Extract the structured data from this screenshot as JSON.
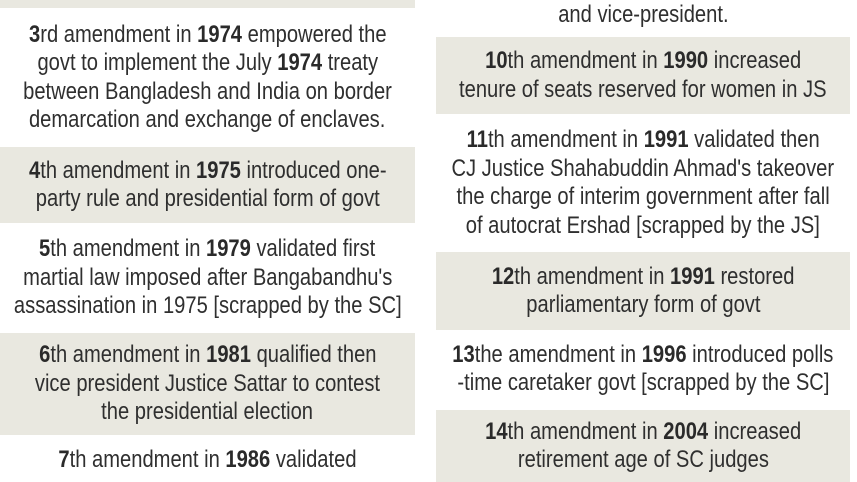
{
  "colors": {
    "shade": "#e9e8e0",
    "text": "#2f2f2f"
  },
  "left_column": [
    {
      "id": "top",
      "shaded": true,
      "lines": []
    },
    {
      "id": "3rd",
      "shaded": false,
      "lines": [
        [
          {
            "t": "3",
            "b": true
          },
          {
            "t": "rd amendment in "
          },
          {
            "t": "1974",
            "b": true
          },
          {
            "t": " empowered the"
          }
        ],
        [
          {
            "t": "govt to implement the July "
          },
          {
            "t": "1974",
            "b": true
          },
          {
            "t": " treaty"
          }
        ],
        [
          {
            "t": "between Bangladesh and India on border"
          }
        ],
        [
          {
            "t": "demarcation and exchange of enclaves."
          }
        ]
      ]
    },
    {
      "id": "4th",
      "shaded": true,
      "lines": [
        [
          {
            "t": "4",
            "b": true
          },
          {
            "t": "th amendment in "
          },
          {
            "t": "1975",
            "b": true
          },
          {
            "t": " introduced one-"
          }
        ],
        [
          {
            "t": "party rule and presidential form of govt"
          }
        ]
      ]
    },
    {
      "id": "5th",
      "shaded": false,
      "lines": [
        [
          {
            "t": "5",
            "b": true
          },
          {
            "t": "th amendment in "
          },
          {
            "t": "1979",
            "b": true
          },
          {
            "t": " validated first"
          }
        ],
        [
          {
            "t": "martial law imposed after Bangabandhu's"
          }
        ],
        [
          {
            "t": "assassination in 1975 [scrapped by the SC]"
          }
        ]
      ]
    },
    {
      "id": "6th",
      "shaded": true,
      "lines": [
        [
          {
            "t": "6",
            "b": true
          },
          {
            "t": "th amendment in "
          },
          {
            "t": "1981",
            "b": true
          },
          {
            "t": " qualified then"
          }
        ],
        [
          {
            "t": "vice president Justice Sattar to contest"
          }
        ],
        [
          {
            "t": "the presidential election"
          }
        ]
      ]
    },
    {
      "id": "7th",
      "shaded": false,
      "lines": [
        [
          {
            "t": "7",
            "b": true
          },
          {
            "t": "th amendment in "
          },
          {
            "t": "1986",
            "b": true
          },
          {
            "t": " validated"
          }
        ]
      ]
    }
  ],
  "right_column": [
    {
      "id": "9th-tail",
      "shaded": false,
      "lines": [
        [
          {
            "t": "and vice-president."
          }
        ]
      ]
    },
    {
      "id": "10th",
      "shaded": true,
      "lines": [
        [
          {
            "t": "10",
            "b": true
          },
          {
            "t": "th amendment in "
          },
          {
            "t": "1990",
            "b": true
          },
          {
            "t": " increased"
          }
        ],
        [
          {
            "t": "tenure of seats reserved for women in JS"
          }
        ]
      ]
    },
    {
      "id": "11th",
      "shaded": false,
      "lines": [
        [
          {
            "t": "11",
            "b": true
          },
          {
            "t": "th amendment in "
          },
          {
            "t": "1991",
            "b": true
          },
          {
            "t": " validated then"
          }
        ],
        [
          {
            "t": "CJ Justice Shahabuddin Ahmad's takeover"
          }
        ],
        [
          {
            "t": "the charge of interim government after fall"
          }
        ],
        [
          {
            "t": "of autocrat Ershad [scrapped by the JS]"
          }
        ]
      ]
    },
    {
      "id": "12th",
      "shaded": true,
      "lines": [
        [
          {
            "t": "12",
            "b": true
          },
          {
            "t": "th amendment in "
          },
          {
            "t": "1991",
            "b": true
          },
          {
            "t": " restored"
          }
        ],
        [
          {
            "t": "parliamentary form of govt"
          }
        ]
      ]
    },
    {
      "id": "13th",
      "shaded": false,
      "lines": [
        [
          {
            "t": "13",
            "b": true
          },
          {
            "t": "the amendment in "
          },
          {
            "t": "1996",
            "b": true
          },
          {
            "t": " introduced polls"
          }
        ],
        [
          {
            "t": "-time caretaker govt [scrapped by the SC]"
          }
        ]
      ]
    },
    {
      "id": "14th",
      "shaded": true,
      "lines": [
        [
          {
            "t": "14",
            "b": true
          },
          {
            "t": "th amendment in "
          },
          {
            "t": "2004",
            "b": true
          },
          {
            "t": " increased"
          }
        ],
        [
          {
            "t": "retirement age of SC judges"
          }
        ]
      ]
    }
  ]
}
